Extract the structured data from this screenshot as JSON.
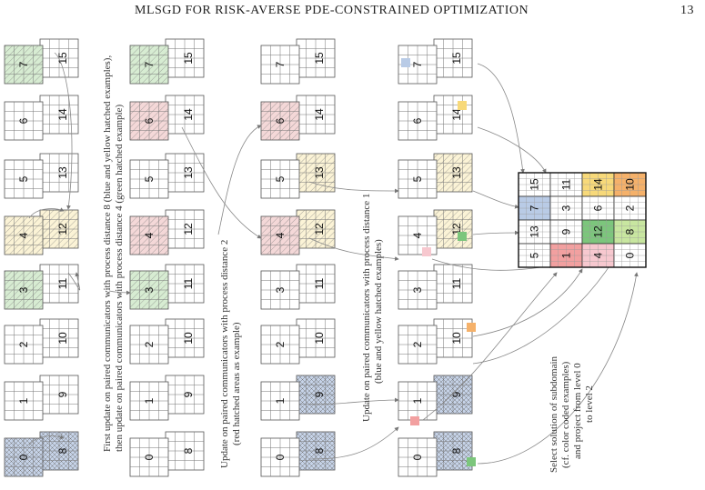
{
  "header": {
    "title": "MLSGD FOR RISK-AVERSE PDE-CONSTRAINED OPTIMIZATION",
    "page_number": "13"
  },
  "annotations": {
    "step1": [
      "First update on paired communicators with process distance 8 (blue and yellow hatched examples),",
      "then update on paired communicators with process distance 4 (green hatched example)"
    ],
    "step2": [
      "Update on paired communicators with process distance 2",
      "(red hatched areas as example)"
    ],
    "step3": [
      "Update on paired communicators with process distance 1",
      "(blue and yellow hatched examples)"
    ],
    "step4": [
      "Select solution of subdomain",
      "(cf. color coded examples)",
      "and project from level 0",
      "to level 2"
    ]
  },
  "colors": {
    "blue_hatch": "#c6d3e8",
    "yellow_hatch": "#fbf3d6",
    "green_hatch": "#d7ecd2",
    "red_hatch": "#f4d8d8",
    "red": "#f2a0a0",
    "green": "#7cc67c",
    "light_green": "#c8e6a0",
    "yellow": "#f7d97a",
    "orange": "#f5b16a",
    "blue": "#b9cbe6",
    "pink": "#f7c8cf"
  },
  "result_grid": {
    "rows": [
      [
        "15",
        "11",
        "14",
        "10"
      ],
      [
        "7",
        "3",
        "6",
        "2"
      ],
      [
        "13",
        "9",
        "12",
        "8"
      ],
      [
        "5",
        "1",
        "4",
        "0"
      ]
    ]
  },
  "columns": [
    {
      "left": [
        "7",
        "6",
        "5",
        "4",
        "3",
        "2",
        "1",
        "0"
      ],
      "right": [
        "15",
        "14",
        "13",
        "12",
        "11",
        "10",
        "9",
        "8"
      ]
    },
    {
      "left": [
        "7",
        "6",
        "5",
        "4",
        "3",
        "2",
        "1",
        "0"
      ],
      "right": [
        "15",
        "14",
        "13",
        "12",
        "11",
        "10",
        "9",
        "8"
      ]
    },
    {
      "left": [
        "7",
        "6",
        "5",
        "4",
        "3",
        "2",
        "1",
        "0"
      ],
      "right": [
        "15",
        "14",
        "13",
        "12",
        "11",
        "10",
        "9",
        "8"
      ]
    },
    {
      "left": [
        "7",
        "6",
        "5",
        "4",
        "3",
        "2",
        "1",
        "0"
      ],
      "right": [
        "15",
        "14",
        "13",
        "12",
        "11",
        "10",
        "9",
        "8"
      ]
    }
  ]
}
